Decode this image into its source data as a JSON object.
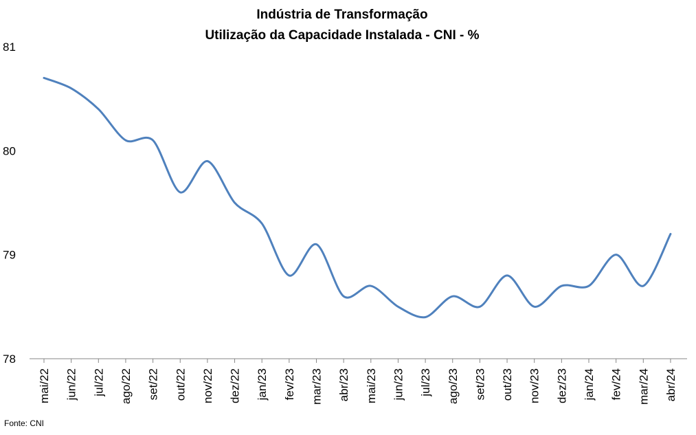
{
  "chart_data": {
    "type": "line",
    "title": "Indústria de Transformação",
    "subtitle": "Utilização da Capacidade Instalada - CNI - %",
    "xlabel": "",
    "ylabel": "",
    "ylim": [
      78,
      81
    ],
    "yticks": [
      "78",
      "79",
      "80",
      "81"
    ],
    "categories": [
      "mai/22",
      "jun/22",
      "jul/22",
      "ago/22",
      "set/22",
      "out/22",
      "nov/22",
      "dez/22",
      "jan/23",
      "fev/23",
      "mar/23",
      "abr/23",
      "mai/23",
      "jun/23",
      "jul/23",
      "ago/23",
      "set/23",
      "out/23",
      "nov/23",
      "dez/23",
      "jan/24",
      "fev/24",
      "mar/24",
      "abr/24"
    ],
    "series": [
      {
        "values": [
          80.7,
          80.6,
          80.4,
          80.1,
          80.1,
          79.6,
          79.9,
          79.5,
          79.3,
          78.8,
          79.1,
          78.6,
          78.7,
          78.5,
          78.4,
          78.6,
          78.5,
          78.8,
          78.5,
          78.7,
          78.7,
          79.0,
          78.7,
          79.2
        ],
        "color": "#4f81bd"
      }
    ],
    "grid": false,
    "legend": "none",
    "source": "Fonte: CNI"
  }
}
